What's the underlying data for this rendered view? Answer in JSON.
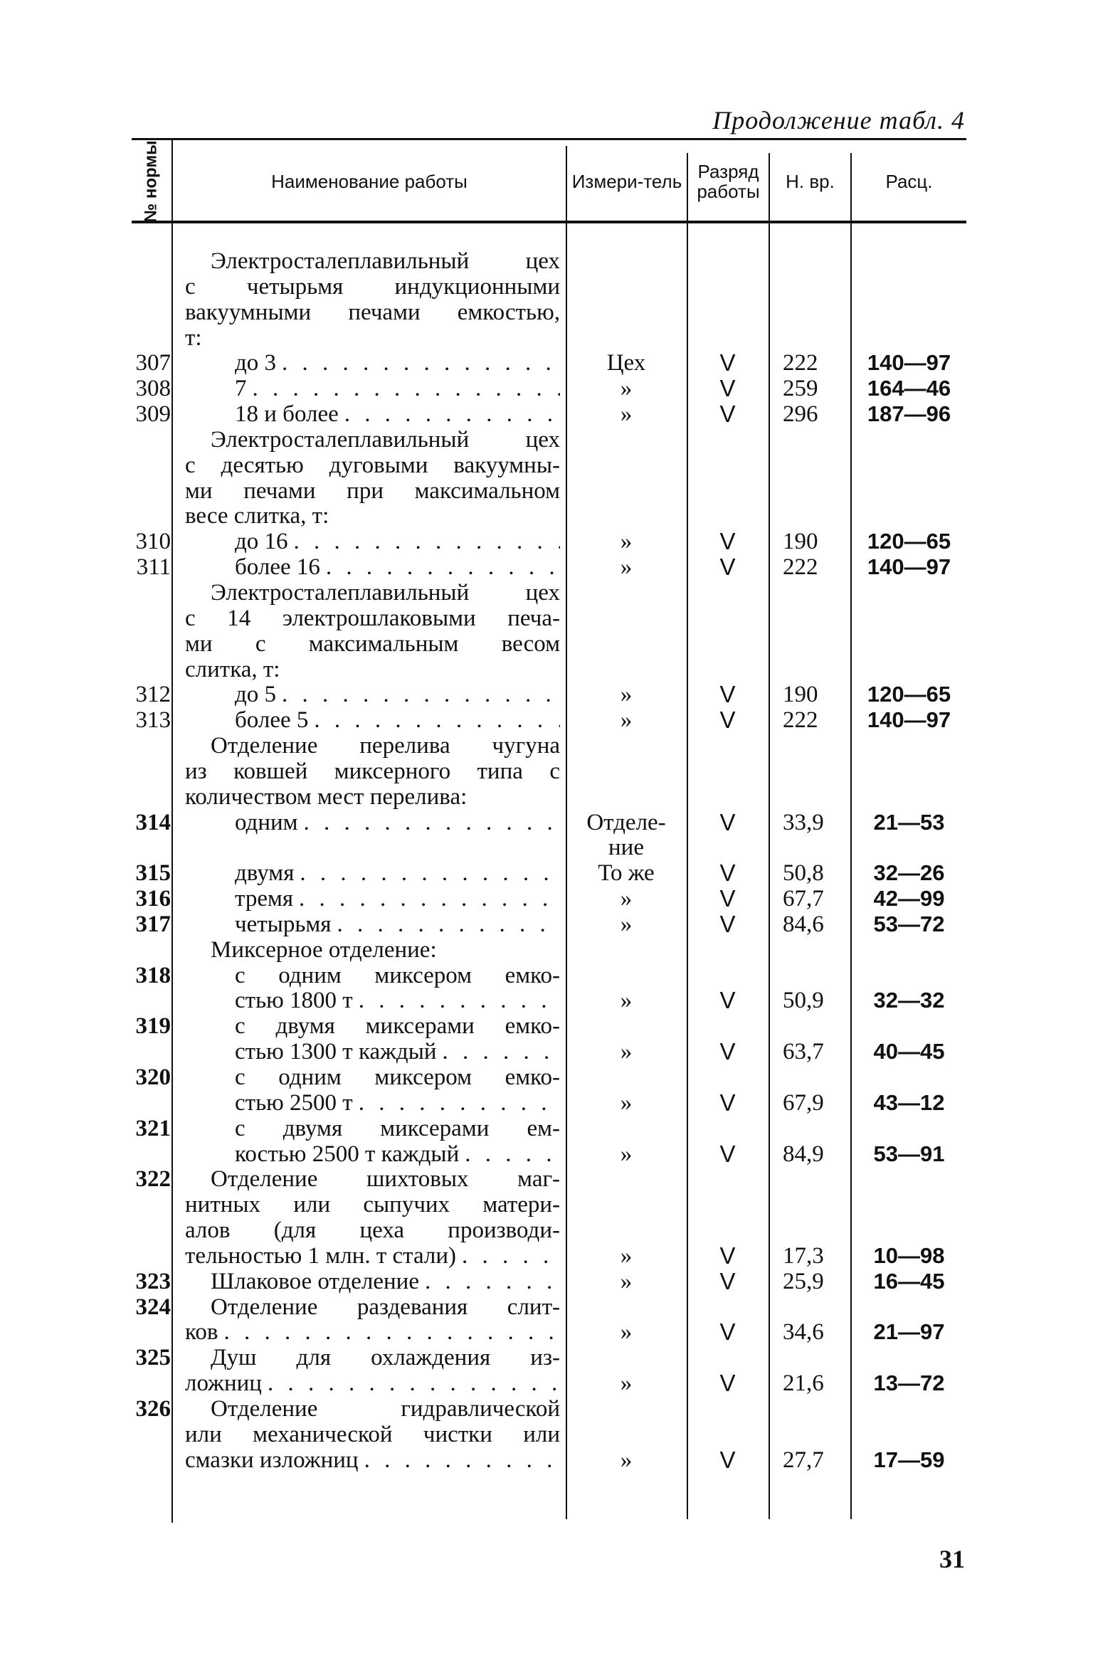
{
  "page_title": "Продолжение табл. 4",
  "page_number": "31",
  "header": {
    "num": "№ нормы",
    "name": "Наименование работы",
    "unit": "Измери-тель",
    "grade": "Разряд работы",
    "hours": "Н. вр.",
    "rate": "Расц."
  },
  "rows": [
    {
      "num": "",
      "lines": [
        "Электросталеплавильный цех",
        "с четырьмя индукционными",
        "вакуумными печами емкостью,",
        "т:"
      ],
      "indent": [
        "h",
        "c",
        "c",
        "c"
      ]
    },
    {
      "num": "307",
      "lines": [
        "до 3"
      ],
      "indent": [
        "i"
      ],
      "unit": [
        "Цех"
      ],
      "grade": "V",
      "hours": "222",
      "rate": "140—97"
    },
    {
      "num": "308",
      "lines": [
        "7"
      ],
      "indent": [
        "i"
      ],
      "unit": [
        "»"
      ],
      "grade": "V",
      "hours": "259",
      "rate": "164—46"
    },
    {
      "num": "309",
      "lines": [
        "18 и более"
      ],
      "indent": [
        "i"
      ],
      "unit": [
        "»"
      ],
      "grade": "V",
      "hours": "296",
      "rate": "187—96"
    },
    {
      "num": "",
      "lines": [
        "Электросталеплавильный цех",
        "с десятью дуговыми вакуумны-",
        "ми печами при максимальном",
        "весе слитка, т:"
      ],
      "indent": [
        "h",
        "c",
        "c",
        "c"
      ]
    },
    {
      "num": "310",
      "lines": [
        "до 16"
      ],
      "indent": [
        "i"
      ],
      "unit": [
        "»"
      ],
      "grade": "V",
      "hours": "190",
      "rate": "120—65"
    },
    {
      "num": "311",
      "lines": [
        "более 16"
      ],
      "indent": [
        "i"
      ],
      "unit": [
        "»"
      ],
      "grade": "V",
      "hours": "222",
      "rate": "140—97"
    },
    {
      "num": "",
      "lines": [
        "Электросталеплавильный цех",
        "с 14 электрошлаковыми печа-",
        "ми с максимальным весом",
        "слитка, т:"
      ],
      "indent": [
        "h",
        "c",
        "c",
        "c"
      ]
    },
    {
      "num": "312",
      "lines": [
        "до 5"
      ],
      "indent": [
        "i"
      ],
      "unit": [
        "»"
      ],
      "grade": "V",
      "hours": "190",
      "rate": "120—65"
    },
    {
      "num": "313",
      "lines": [
        "более 5"
      ],
      "indent": [
        "i"
      ],
      "unit": [
        "»"
      ],
      "grade": "V",
      "hours": "222",
      "rate": "140—97"
    },
    {
      "num": "",
      "lines": [
        "Отделение перелива чугуна",
        "из ковшей миксерного типа с",
        "количеством мест перелива:"
      ],
      "indent": [
        "h",
        "c",
        "c"
      ]
    },
    {
      "num": "314",
      "lines": [
        "одним"
      ],
      "indent": [
        "i"
      ],
      "unit": [
        "Отделе-",
        "ние"
      ],
      "grade": "V",
      "hours": "33,9",
      "rate": "21—53"
    },
    {
      "num": "315",
      "lines": [
        "двумя"
      ],
      "indent": [
        "i"
      ],
      "unit": [
        "То же"
      ],
      "grade": "V",
      "hours": "50,8",
      "rate": "32—26"
    },
    {
      "num": "316",
      "lines": [
        "тремя"
      ],
      "indent": [
        "i"
      ],
      "unit": [
        "»"
      ],
      "grade": "V",
      "hours": "67,7",
      "rate": "42—99"
    },
    {
      "num": "317",
      "lines": [
        "четырьмя"
      ],
      "indent": [
        "i"
      ],
      "unit": [
        "»"
      ],
      "grade": "V",
      "hours": "84,6",
      "rate": "53—72"
    },
    {
      "num": "",
      "lines": [
        "Миксерное отделение:"
      ],
      "indent": [
        "h"
      ]
    },
    {
      "num": "318",
      "lines": [
        "с одним миксером емко-",
        "стью 1800 т"
      ],
      "indent": [
        "i",
        "i"
      ],
      "unit": [
        "»"
      ],
      "grade": "V",
      "hours": "50,9",
      "rate": "32—32"
    },
    {
      "num": "319",
      "lines": [
        "с двумя миксерами емко-",
        "стью 1300 т каждый"
      ],
      "indent": [
        "i",
        "i"
      ],
      "unit": [
        "»"
      ],
      "grade": "V",
      "hours": "63,7",
      "rate": "40—45"
    },
    {
      "num": "320",
      "lines": [
        "с одним миксером емко-",
        "стью 2500 т"
      ],
      "indent": [
        "i",
        "i"
      ],
      "unit": [
        "»"
      ],
      "grade": "V",
      "hours": "67,9",
      "rate": "43—12"
    },
    {
      "num": "321",
      "lines": [
        "с двумя миксерами ем-",
        "костью 2500 т каждый"
      ],
      "indent": [
        "i",
        "i"
      ],
      "unit": [
        "»"
      ],
      "grade": "V",
      "hours": "84,9",
      "rate": "53—91"
    },
    {
      "num": "322",
      "lines": [
        "Отделение шихтовых маг-",
        "нитных или сыпучих матери-",
        "алов (для цеха производи-",
        "тельностью 1 млн. т стали)"
      ],
      "indent": [
        "h",
        "c",
        "c",
        "c"
      ],
      "unit": [
        "»"
      ],
      "grade": "V",
      "hours": "17,3",
      "rate": "10—98"
    },
    {
      "num": "323",
      "lines": [
        "Шлаковое отделение"
      ],
      "indent": [
        "h"
      ],
      "unit": [
        "»"
      ],
      "grade": "V",
      "hours": "25,9",
      "rate": "16—45"
    },
    {
      "num": "324",
      "lines": [
        "Отделение раздевания слит-",
        "ков"
      ],
      "indent": [
        "h",
        "c"
      ],
      "unit": [
        "»"
      ],
      "grade": "V",
      "hours": "34,6",
      "rate": "21—97"
    },
    {
      "num": "325",
      "lines": [
        "Душ для охлаждения из-",
        "ложниц"
      ],
      "indent": [
        "h",
        "c"
      ],
      "unit": [
        "»"
      ],
      "grade": "V",
      "hours": "21,6",
      "rate": "13—72"
    },
    {
      "num": "326",
      "lines": [
        "Отделение гидравлической",
        "или механической чистки или",
        "смазки изложниц"
      ],
      "indent": [
        "h",
        "c",
        "c"
      ],
      "unit": [
        "»"
      ],
      "grade": "V",
      "hours": "27,7",
      "rate": "17—59"
    }
  ]
}
